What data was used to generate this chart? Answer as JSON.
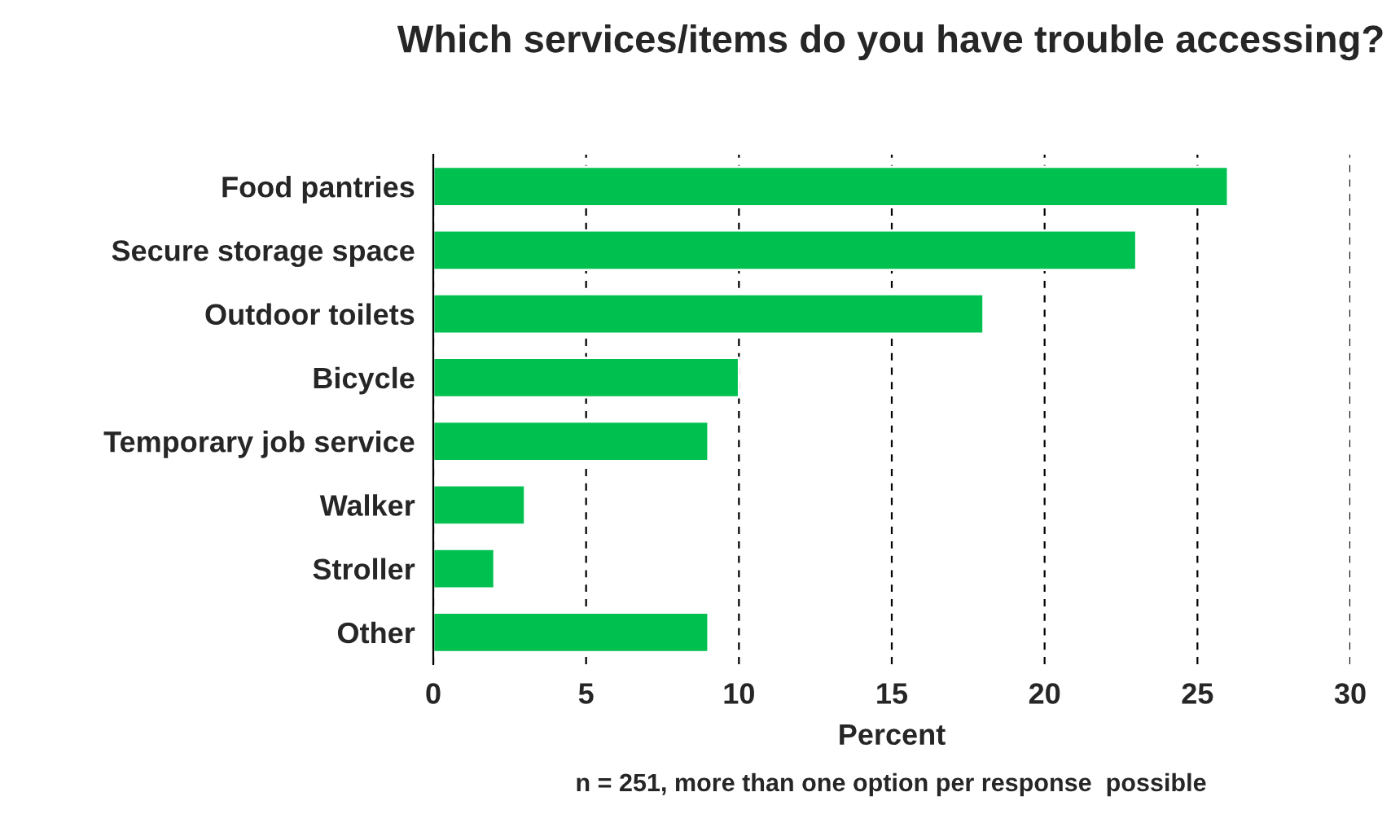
{
  "chart_data": {
    "type": "bar",
    "orientation": "horizontal",
    "title": "Which services/items do you have trouble accessing?",
    "xlabel": "Percent",
    "categories": [
      "Food pantries",
      "Secure storage space",
      "Outdoor toilets",
      "Bicycle",
      "Temporary job service",
      "Walker",
      "Stroller",
      "Other"
    ],
    "values": [
      26,
      23,
      18,
      10,
      9,
      3,
      2,
      9
    ],
    "color": "#00c050",
    "xlim": [
      0,
      30
    ],
    "xticks": [
      0,
      5,
      10,
      15,
      20,
      25,
      30
    ],
    "grid": "x",
    "annotations": [
      "n = 251, more than one option per response  possible"
    ]
  }
}
